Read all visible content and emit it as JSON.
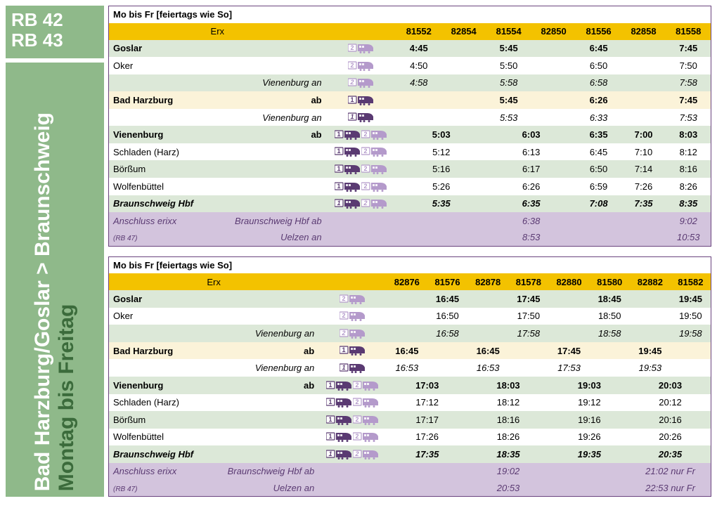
{
  "sidebar": {
    "line1": "RB 42",
    "line2": "RB 43",
    "day": "Montag bis Freitag",
    "route": "Bad Harzburg/Goslar > Braunschweig"
  },
  "icon_colors": {
    "dark": "#5a3a72",
    "light": "#b49acb"
  },
  "table1": {
    "header": "Mo bis Fr [feiertags wie So]",
    "operator": "Erx",
    "trains": [
      "81552",
      "82854",
      "81554",
      "82850",
      "81556",
      "82858",
      "81558"
    ],
    "rows": [
      {
        "cls": "row-even bold",
        "station": "Goslar",
        "suffix": "",
        "icons": "single-light",
        "times": [
          "4:45",
          "",
          "5:45",
          "",
          "6:45",
          "",
          "7:45"
        ]
      },
      {
        "cls": "row-odd",
        "station": "Oker",
        "suffix": "",
        "icons": "single-light",
        "times": [
          "4:50",
          "",
          "5:50",
          "",
          "6:50",
          "",
          "7:50"
        ]
      },
      {
        "cls": "row-even ital",
        "station": "Vienenburg an",
        "suffix": "",
        "right": true,
        "icons": "single-light",
        "times": [
          "4:58",
          "",
          "5:58",
          "",
          "6:58",
          "",
          "7:58"
        ]
      },
      {
        "cls": "row-cream bold",
        "station": "Bad Harzburg",
        "suffix": "ab",
        "icons": "single-dark",
        "times": [
          "",
          "",
          "5:45",
          "",
          "6:26",
          "",
          "7:45",
          ""
        ],
        "skipfirst": true
      },
      {
        "cls": "row-odd ital",
        "station": "Vienenburg an",
        "suffix": "",
        "right": true,
        "icons": "single-dark",
        "times": [
          "",
          "",
          "5:53",
          "",
          "6:33",
          "",
          "7:53",
          ""
        ],
        "skipfirst": true
      },
      {
        "cls": "row-even bold",
        "station": "Vienenburg",
        "suffix": "ab",
        "icons": "both",
        "mergetimes": [
          "5:03",
          "6:03",
          "6:35",
          "7:00",
          "8:03"
        ],
        "merge": [
          2,
          2,
          1,
          1,
          1
        ]
      },
      {
        "cls": "row-odd",
        "station": "Schladen (Harz)",
        "suffix": "",
        "icons": "both",
        "mergetimes": [
          "5:12",
          "6:13",
          "6:45",
          "7:10",
          "8:12"
        ],
        "merge": [
          2,
          2,
          1,
          1,
          1
        ]
      },
      {
        "cls": "row-even",
        "station": "Börßum",
        "suffix": "",
        "icons": "both",
        "mergetimes": [
          "5:16",
          "6:17",
          "6:50",
          "7:14",
          "8:16"
        ],
        "merge": [
          2,
          2,
          1,
          1,
          1
        ]
      },
      {
        "cls": "row-odd",
        "station": "Wolfenbüttel",
        "suffix": "",
        "icons": "both",
        "mergetimes": [
          "5:26",
          "6:26",
          "6:59",
          "7:26",
          "8:26"
        ],
        "merge": [
          2,
          2,
          1,
          1,
          1
        ]
      },
      {
        "cls": "row-even bold ital",
        "station": "Braunschweig Hbf",
        "suffix": "",
        "icons": "both",
        "mergetimes": [
          "5:35",
          "6:35",
          "7:08",
          "7:35",
          "8:35"
        ],
        "merge": [
          2,
          2,
          1,
          1,
          1
        ]
      }
    ],
    "conn": {
      "label": "Anschluss erixx",
      "sub": "(RB 47)",
      "from": "Braunschweig Hbf ab",
      "to": "Uelzen an",
      "from_times": [
        "",
        "6:38",
        "",
        "",
        "9:02"
      ],
      "to_times": [
        "",
        "8:53",
        "",
        "",
        "10:53"
      ],
      "merge": [
        2,
        2,
        1,
        1,
        1
      ]
    }
  },
  "table2": {
    "header": "Mo bis Fr [feiertags wie So]",
    "operator": "Erx",
    "trains": [
      "82876",
      "81576",
      "82878",
      "81578",
      "82880",
      "81580",
      "82882",
      "81582"
    ],
    "rows": [
      {
        "cls": "row-even bold",
        "station": "Goslar",
        "suffix": "",
        "icons": "single-light",
        "times": [
          "",
          "16:45",
          "",
          "17:45",
          "",
          "18:45",
          "",
          "19:45"
        ]
      },
      {
        "cls": "row-odd",
        "station": "Oker",
        "suffix": "",
        "icons": "single-light",
        "times": [
          "",
          "16:50",
          "",
          "17:50",
          "",
          "18:50",
          "",
          "19:50"
        ]
      },
      {
        "cls": "row-even ital",
        "station": "Vienenburg an",
        "suffix": "",
        "right": true,
        "icons": "single-light",
        "times": [
          "",
          "16:58",
          "",
          "17:58",
          "",
          "18:58",
          "",
          "19:58"
        ]
      },
      {
        "cls": "row-cream bold",
        "station": "Bad Harzburg",
        "suffix": "ab",
        "icons": "single-dark",
        "times": [
          "16:45",
          "",
          "16:45",
          "",
          "17:45",
          "",
          "19:45",
          ""
        ]
      },
      {
        "cls": "row-odd ital",
        "station": "Vienenburg an",
        "suffix": "",
        "right": true,
        "icons": "single-dark",
        "times": [
          "16:53",
          "",
          "16:53",
          "",
          "17:53",
          "",
          "19:53",
          ""
        ]
      },
      {
        "cls": "row-even bold",
        "station": "Vienenburg",
        "suffix": "ab",
        "icons": "both",
        "mergetimes": [
          "17:03",
          "18:03",
          "19:03",
          "20:03"
        ],
        "merge": [
          2,
          2,
          2,
          2
        ]
      },
      {
        "cls": "row-odd",
        "station": "Schladen (Harz)",
        "suffix": "",
        "icons": "both",
        "mergetimes": [
          "17:12",
          "18:12",
          "19:12",
          "20:12"
        ],
        "merge": [
          2,
          2,
          2,
          2
        ]
      },
      {
        "cls": "row-even",
        "station": "Börßum",
        "suffix": "",
        "icons": "both",
        "mergetimes": [
          "17:17",
          "18:16",
          "19:16",
          "20:16"
        ],
        "merge": [
          2,
          2,
          2,
          2
        ]
      },
      {
        "cls": "row-odd",
        "station": "Wolfenbüttel",
        "suffix": "",
        "icons": "both",
        "mergetimes": [
          "17:26",
          "18:26",
          "19:26",
          "20:26"
        ],
        "merge": [
          2,
          2,
          2,
          2
        ]
      },
      {
        "cls": "row-even bold ital",
        "station": "Braunschweig Hbf",
        "suffix": "",
        "icons": "both",
        "mergetimes": [
          "17:35",
          "18:35",
          "19:35",
          "20:35"
        ],
        "merge": [
          2,
          2,
          2,
          2
        ]
      }
    ],
    "conn": {
      "label": "Anschluss erixx",
      "sub": "(RB 47)",
      "from": "Braunschweig Hbf ab",
      "to": "Uelzen an",
      "from_times": [
        "",
        "19:02",
        "",
        "21:02 nur Fr"
      ],
      "to_times": [
        "",
        "20:53",
        "",
        "22:53 nur Fr"
      ],
      "merge": [
        2,
        2,
        2,
        2
      ]
    }
  }
}
